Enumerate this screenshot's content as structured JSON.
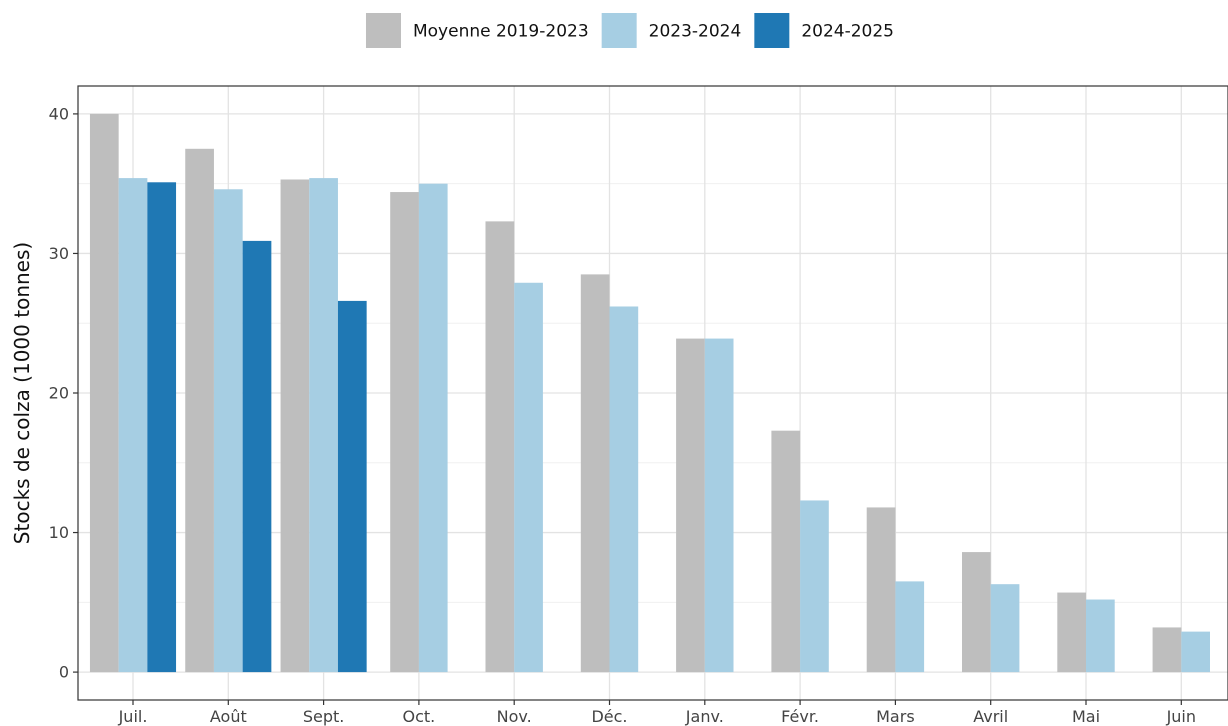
{
  "chart_data": {
    "type": "bar",
    "title": "",
    "xlabel": "",
    "ylabel": "Stocks de colza (1000 tonnes)",
    "ylim": [
      -2,
      42
    ],
    "yticks": [
      0,
      10,
      20,
      30,
      40
    ],
    "grid": true,
    "legend_position": "top",
    "categories": [
      "Juil.",
      "Août",
      "Sept.",
      "Oct.",
      "Nov.",
      "Déc.",
      "Janv.",
      "Févr.",
      "Mars",
      "Avril",
      "Mai",
      "Juin"
    ],
    "series": [
      {
        "name": "Moyenne 2019-2023",
        "color": "#bebebe",
        "values": [
          40.0,
          37.5,
          35.3,
          34.4,
          32.3,
          28.5,
          23.9,
          17.3,
          11.8,
          8.6,
          5.7,
          3.2
        ]
      },
      {
        "name": "2023-2024",
        "color": "#a6cee3",
        "values": [
          35.4,
          34.6,
          35.4,
          35.0,
          27.9,
          26.2,
          23.9,
          12.3,
          6.5,
          6.3,
          5.2,
          2.9
        ]
      },
      {
        "name": "2024-2025",
        "color": "#1f78b4",
        "values": [
          35.1,
          30.9,
          26.6,
          null,
          null,
          null,
          null,
          null,
          null,
          null,
          null,
          null
        ]
      }
    ]
  }
}
